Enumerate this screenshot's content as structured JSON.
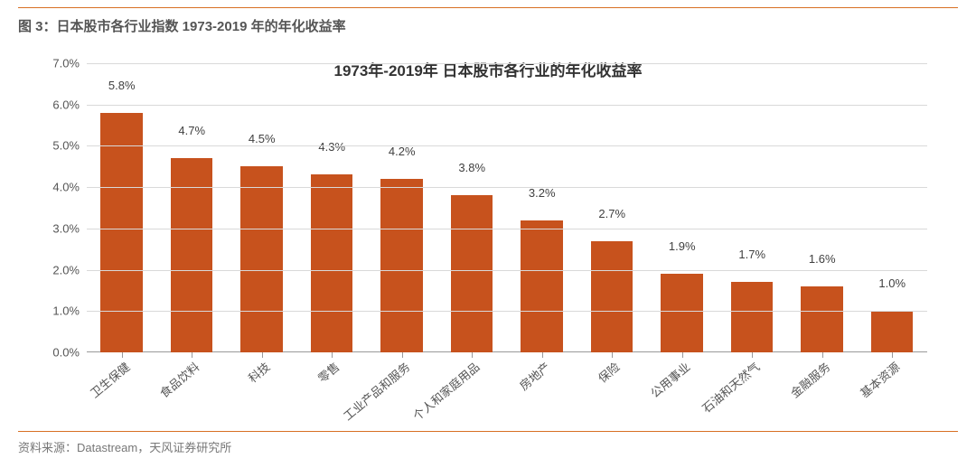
{
  "figure_title": "图 3：日本股市各行业指数 1973-2019 年的年化收益率",
  "source": "资料来源：Datastream，天风证券研究所",
  "chart": {
    "type": "bar",
    "title": "1973年-2019年 日本股市各行业的年化收益率",
    "title_fontsize": 17,
    "label_fontsize": 13,
    "categories": [
      "卫生保健",
      "食品饮料",
      "科技",
      "零售",
      "工业产品和服务",
      "个人和家庭用品",
      "房地产",
      "保险",
      "公用事业",
      "石油和天然气",
      "金融服务",
      "基本资源"
    ],
    "values": [
      5.8,
      4.7,
      4.5,
      4.3,
      4.2,
      3.8,
      3.2,
      2.7,
      1.9,
      1.7,
      1.6,
      1.0
    ],
    "value_labels": [
      "5.8%",
      "4.7%",
      "4.5%",
      "4.3%",
      "4.2%",
      "3.8%",
      "3.2%",
      "2.7%",
      "1.9%",
      "1.7%",
      "1.6%",
      "1.0%"
    ],
    "bar_color": "#c7521d",
    "background_color": "#ffffff",
    "grid_color": "#d9d9d9",
    "axis_color": "#999999",
    "text_color": "#555555",
    "ylim": [
      0.0,
      7.0
    ],
    "ytick_step": 1.0,
    "yticks": [
      "0.0%",
      "1.0%",
      "2.0%",
      "3.0%",
      "4.0%",
      "5.0%",
      "6.0%",
      "7.0%"
    ],
    "bar_width": 0.6,
    "x_label_rotation_deg": -40,
    "rule_color": "#d87023"
  }
}
